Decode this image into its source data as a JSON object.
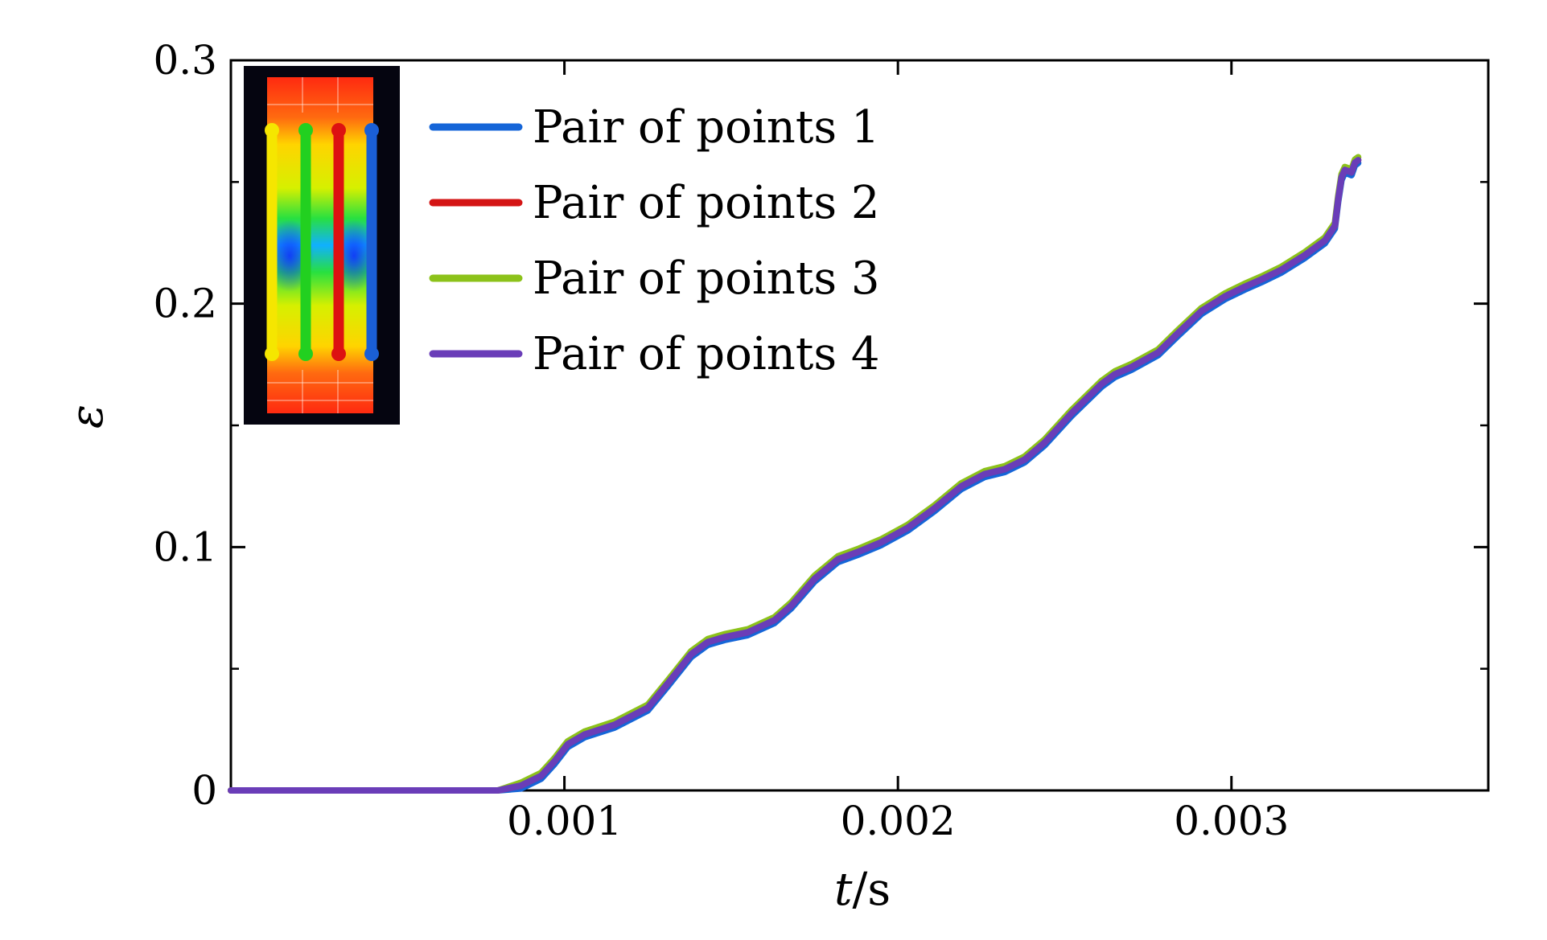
{
  "chart_data": {
    "type": "line",
    "title": "",
    "xlabel": "t/s",
    "ylabel": "ε",
    "xlim": [
      0,
      0.00377
    ],
    "ylim": [
      0,
      0.3
    ],
    "grid": false,
    "legend_position": "top-left",
    "x_ticks": [
      {
        "value": 0.001,
        "label": "0.001"
      },
      {
        "value": 0.002,
        "label": "0.002"
      },
      {
        "value": 0.003,
        "label": "0.003"
      }
    ],
    "y_ticks": [
      {
        "value": 0,
        "label": "0"
      },
      {
        "value": 0.1,
        "label": "0.1"
      },
      {
        "value": 0.2,
        "label": "0.2"
      },
      {
        "value": 0.3,
        "label": "0.3"
      }
    ],
    "y_minor_ticks": [
      0.05,
      0.15,
      0.25
    ],
    "inset": {
      "description": "strain field contour image with four vertical point-pair lines",
      "line_colors": [
        "#f5e600",
        "#22d020",
        "#dd1111",
        "#1a5fd6"
      ]
    },
    "series": [
      {
        "name": "Pair of points 1",
        "color": "#1565d8",
        "offset": -0.0012
      },
      {
        "name": "Pair of points 2",
        "color": "#d41515",
        "offset": 0.0
      },
      {
        "name": "Pair of points 3",
        "color": "#8cc21a",
        "offset": 0.0012
      },
      {
        "name": "Pair of points 4",
        "color": "#6a3db8",
        "offset": 0.0
      },
      {
        "base_curve_x": [
          0,
          0.0008,
          0.00087,
          0.00093,
          0.00097,
          0.00101,
          0.00106,
          0.00115,
          0.00125,
          0.00131,
          0.00138,
          0.00143,
          0.00148,
          0.00155,
          0.00163,
          0.00168,
          0.00175,
          0.00182,
          0.00188,
          0.00195,
          0.00203,
          0.00211,
          0.00219,
          0.00226,
          0.00232,
          0.00238,
          0.00244,
          0.00252,
          0.00261,
          0.00265,
          0.0027,
          0.00278,
          0.00284,
          0.00291,
          0.00298,
          0.00304,
          0.00309,
          0.00315,
          0.00322,
          0.00328,
          0.00331,
          0.00332,
          0.00333,
          0.00334,
          0.00336,
          0.00337,
          0.00338
        ],
        "base_curve_y": [
          0,
          0,
          0.002,
          0.006,
          0.012,
          0.019,
          0.023,
          0.027,
          0.034,
          0.044,
          0.056,
          0.061,
          0.063,
          0.065,
          0.07,
          0.076,
          0.087,
          0.095,
          0.098,
          0.102,
          0.108,
          0.116,
          0.125,
          0.13,
          0.132,
          0.136,
          0.143,
          0.155,
          0.167,
          0.171,
          0.174,
          0.18,
          0.188,
          0.197,
          0.203,
          0.207,
          0.21,
          0.214,
          0.22,
          0.226,
          0.232,
          0.243,
          0.252,
          0.255,
          0.254,
          0.258,
          0.259
        ]
      }
    ]
  }
}
